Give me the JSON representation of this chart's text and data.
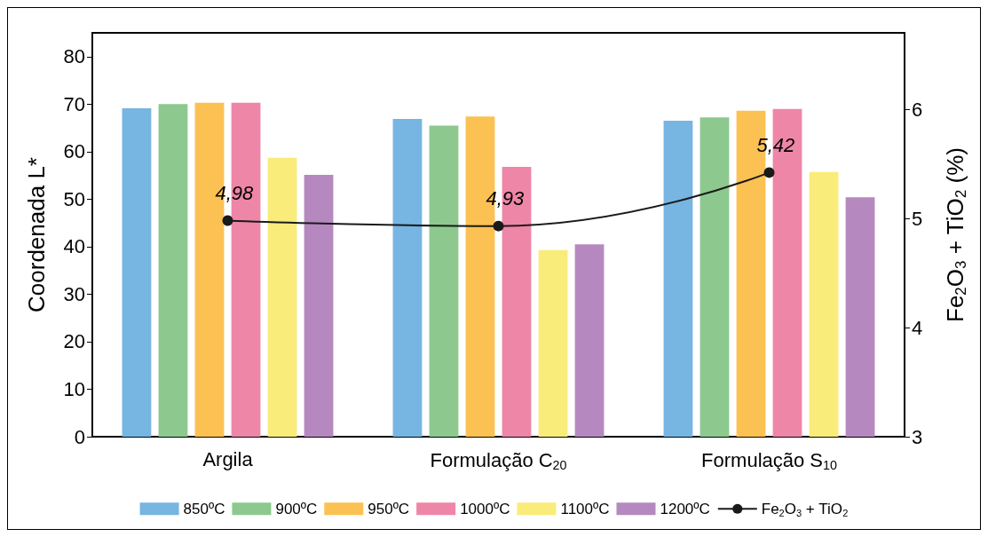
{
  "chart_data": {
    "type": "bar",
    "ylabel": "Coordenada L*",
    "y2label": "Fe$_{2}$O$_{3}$ + TiO$_{2}$ (%)",
    "categories": [
      "Argila",
      "Formulação C$_{20}$",
      "Formulação S$_{10}$"
    ],
    "series": [
      {
        "name": "850ºC",
        "color": "#77b5e3",
        "values": [
          69.1,
          66.9,
          66.5
        ]
      },
      {
        "name": "900ºC",
        "color": "#8dc98e",
        "values": [
          70.0,
          65.5,
          67.2
        ]
      },
      {
        "name": "950ºC",
        "color": "#fbc153",
        "values": [
          70.3,
          67.4,
          68.6
        ]
      },
      {
        "name": "1000ºC",
        "color": "#ee86a8",
        "values": [
          70.3,
          56.8,
          69.0
        ]
      },
      {
        "name": "1100ºC",
        "color": "#f9ec7a",
        "values": [
          58.7,
          39.3,
          55.7
        ]
      },
      {
        "name": "1200ºC",
        "color": "#b589bf",
        "values": [
          55.1,
          40.5,
          50.4
        ]
      },
      {
        "name": "Fe$_{2}$O$_{3}$ + TiO$_{2}$",
        "type": "line",
        "axis": "y2",
        "color": "#1a1a1a",
        "values": [
          4.98,
          4.93,
          5.42
        ],
        "value_labels": [
          "4,98",
          "4,93",
          "5,42"
        ],
        "marker": "circle"
      }
    ],
    "ylim": [
      0,
      85
    ],
    "yticks": [
      0,
      10,
      20,
      30,
      40,
      50,
      60,
      70,
      80
    ],
    "y2lim": [
      3,
      6.7
    ],
    "y2ticks": [
      3,
      4,
      5,
      6
    ],
    "grid": false,
    "legend": "bottom"
  }
}
